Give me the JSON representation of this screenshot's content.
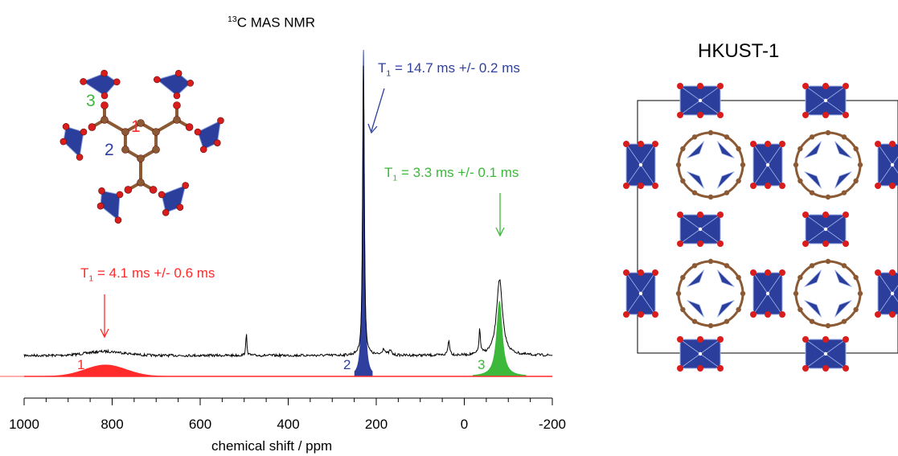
{
  "spectrum_title": "13C MAS NMR",
  "spectrum_title_sup": "13",
  "spectrum_title_main": "C MAS NMR",
  "structure_title": "HKUST-1",
  "annotations": {
    "c2": {
      "prefix": "T",
      "sub": "1",
      "text": " = 14.7 ms +/- 0.2 ms",
      "color": "#2e3f9e"
    },
    "c3": {
      "prefix": "T",
      "sub": "1",
      "text": " = 3.3 ms +/- 0.1 ms",
      "color": "#3cb83a"
    },
    "c1": {
      "prefix": "T",
      "sub": "1",
      "text": " = 4.1 ms +/- 0.6 ms",
      "color": "#ff2a2a"
    }
  },
  "peak_labels": {
    "p1": "1",
    "p2": "2",
    "p3": "3"
  },
  "molecule_labels": {
    "m1": "1",
    "m2": "2",
    "m3": "3"
  },
  "colors": {
    "red": "#ff2a2a",
    "blue": "#2e3f9e",
    "green": "#3cb83a",
    "cu_polyhedra": "#2b3e9c",
    "oxygen": "#d91c1c",
    "carbon": "#8b5a34"
  },
  "chart_data": {
    "type": "line",
    "title": "13C MAS NMR",
    "xlabel": "chemical shift / ppm",
    "ylabel": "",
    "xlim": [
      1000,
      -200
    ],
    "x_ticks": [
      "1000",
      "800",
      "600",
      "400",
      "200",
      "0",
      "-200"
    ],
    "tick_values": [
      1000,
      800,
      600,
      400,
      200,
      0,
      -200
    ],
    "grid": false,
    "series": [
      {
        "name": "1",
        "color": "#ff2a2a",
        "center_ppm": 815,
        "fwhm_ppm": 85,
        "relative_height": 0.035,
        "T1": "4.1 ms +/- 0.6 ms"
      },
      {
        "name": "2",
        "color": "#2e3f9e",
        "center_ppm": 229,
        "fwhm_ppm": 5,
        "relative_height": 1.0,
        "T1": "14.7 ms +/- 0.2 ms"
      },
      {
        "name": "3",
        "color": "#3cb83a",
        "center_ppm": -80,
        "fwhm_ppm": 15,
        "relative_height": 0.23,
        "T1": "3.3 ms +/- 0.1 ms"
      }
    ],
    "experimental_minor_peaks_ppm": [
      495,
      180,
      35,
      -35
    ]
  }
}
